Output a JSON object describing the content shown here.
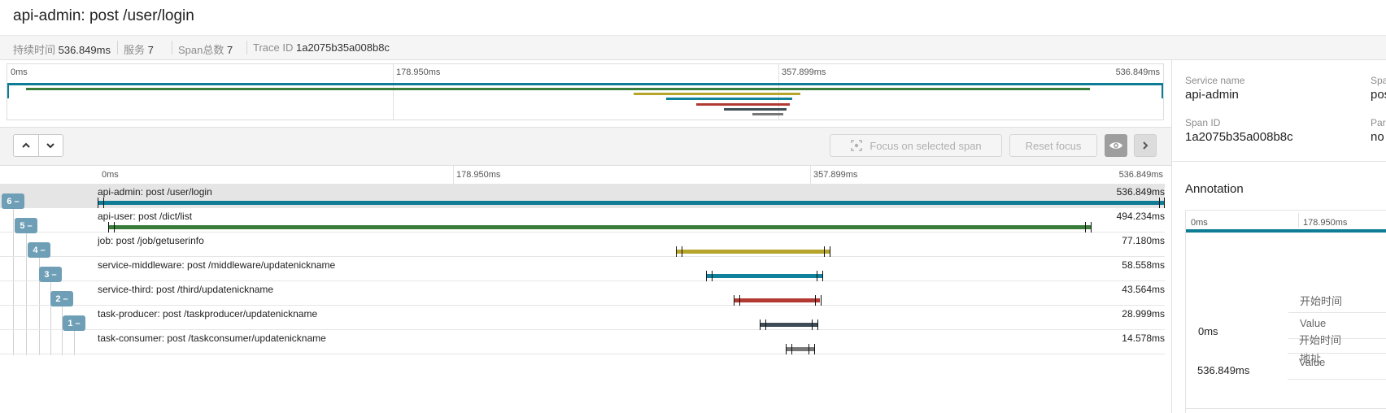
{
  "header": {
    "title": "api-admin: post /user/login",
    "meta": [
      {
        "key": "持续时间",
        "value": "536.849ms"
      },
      {
        "key": "服务",
        "value": "7"
      },
      {
        "key": "Span总数",
        "value": "7"
      },
      {
        "key": "Trace ID",
        "value": "1a2075b35a008b8c"
      }
    ]
  },
  "minimap": {
    "ticks": [
      "0ms",
      "178.950ms",
      "357.899ms",
      "536.849ms"
    ]
  },
  "toolbar": {
    "focus_label": "Focus on selected span",
    "reset_label": "Reset focus"
  },
  "timeline": {
    "ticks": [
      "0ms",
      "178.950ms",
      "357.899ms",
      "536.849ms"
    ],
    "total_ms": 536.849
  },
  "spans": [
    {
      "name": "api-admin: post /user/login",
      "duration": "536.849ms",
      "start_ms": 0,
      "duration_ms": 536.849,
      "color": "#0f7c96",
      "badge": "6 –",
      "selected": true
    },
    {
      "name": "api-user: post /dict/list",
      "duration": "494.234ms",
      "start_ms": 5.5,
      "duration_ms": 494.234,
      "color": "#3a7d3a",
      "badge": "5 –",
      "selected": false
    },
    {
      "name": "job: post /job/getuserinfo",
      "duration": "77.180ms",
      "start_ms": 291,
      "duration_ms": 77.18,
      "color": "#b5a52a",
      "badge": "4 –",
      "selected": false
    },
    {
      "name": "service-middleware: post /middleware/updatenickname",
      "duration": "58.558ms",
      "start_ms": 306,
      "duration_ms": 58.558,
      "color": "#11829b",
      "badge": "3 –",
      "selected": false
    },
    {
      "name": "service-third: post /third/updatenickname",
      "duration": "43.564ms",
      "start_ms": 320,
      "duration_ms": 43.564,
      "color": "#b23a32",
      "badge": "2 –",
      "selected": false
    },
    {
      "name": "task-producer: post /taskproducer/updatenickname",
      "duration": "28.999ms",
      "start_ms": 333,
      "duration_ms": 28.999,
      "color": "#3f4d57",
      "badge": "1 –",
      "selected": false
    },
    {
      "name": "task-consumer: post /taskconsumer/updatenickname",
      "duration": "14.578ms",
      "start_ms": 346,
      "duration_ms": 14.578,
      "color": "#777777",
      "badge": "",
      "selected": false
    }
  ],
  "detail": {
    "service_name_label": "Service name",
    "service_name": "api-admin",
    "span_name_label": "Spa",
    "span_name": "pos",
    "span_id_label": "Span ID",
    "span_id": "1a2075b35a008b8c",
    "parent_label": "Par",
    "parent": "no",
    "annotation_heading": "Annotation",
    "annotation_ticks": [
      "0ms",
      "178.950ms"
    ],
    "annotations": [
      {
        "time": "0ms",
        "fields": [
          "开始时间",
          "Value",
          "地址"
        ]
      },
      {
        "time": "536.849ms",
        "fields": [
          "开始时间",
          "Value"
        ]
      }
    ]
  }
}
